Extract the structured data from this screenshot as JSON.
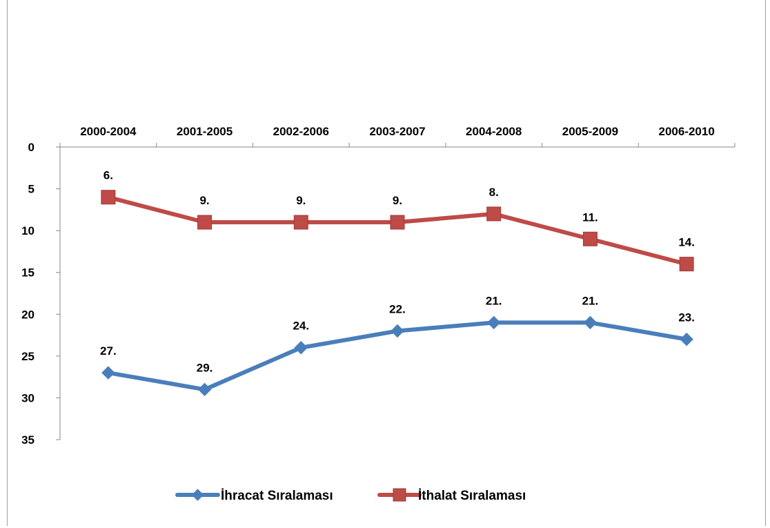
{
  "chart_data": {
    "type": "line",
    "categories": [
      "2000-2004",
      "2001-2005",
      "2002-2006",
      "2003-2007",
      "2004-2008",
      "2005-2009",
      "2006-2010"
    ],
    "y_axis": {
      "min": 0,
      "max": 35,
      "step": 5,
      "reversed": true,
      "ticks": [
        "0",
        "5",
        "10",
        "15",
        "20",
        "25",
        "30",
        "35"
      ]
    },
    "x_axis_position": "top",
    "grid": false,
    "legend_position": "bottom",
    "series": [
      {
        "name": "İhracat Sıralaması",
        "values": [
          27,
          29,
          24,
          22,
          21,
          21,
          23
        ],
        "labels": [
          "27.",
          "29.",
          "24.",
          "22.",
          "21.",
          "21.",
          "23."
        ],
        "color": "#4a7ebb",
        "marker": "diamond"
      },
      {
        "name": "İthalat Sıralaması",
        "values": [
          6,
          9,
          9,
          9,
          8,
          11,
          14
        ],
        "labels": [
          "6.",
          "9.",
          "9.",
          "9.",
          "8.",
          "11.",
          "14."
        ],
        "color": "#be4b48",
        "marker": "square"
      }
    ]
  }
}
